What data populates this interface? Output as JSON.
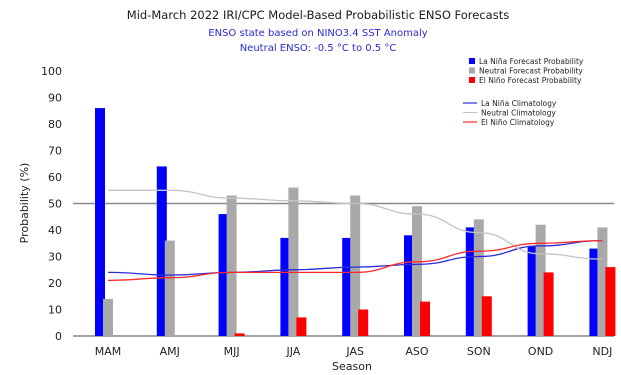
{
  "chart_data": {
    "type": "bar",
    "title": "Mid-March 2022 IRI/CPC Model-Based Probabilistic ENSO Forecasts",
    "subtitle_lines": [
      "ENSO state based on NINO3.4 SST Anomaly",
      "Neutral ENSO: -0.5 °C to 0.5 °C"
    ],
    "xlabel": "Season",
    "ylabel": "Probability (%)",
    "ylim": [
      0,
      100
    ],
    "yticks": [
      "0",
      "10",
      "20",
      "30",
      "40",
      "50",
      "60",
      "70",
      "80",
      "90",
      "100"
    ],
    "reference_line": 50,
    "grid": false,
    "legend_position": "top-right",
    "categories": [
      "MAM",
      "AMJ",
      "MJJ",
      "JJA",
      "JAS",
      "ASO",
      "SON",
      "OND",
      "NDJ"
    ],
    "series": [
      {
        "name": "La Niña Forecast Probability",
        "color": "#0000ff",
        "values": [
          86,
          64,
          46,
          37,
          37,
          38,
          41,
          34,
          33
        ]
      },
      {
        "name": "Neutral Forecast Probability",
        "color": "#a9a9a9",
        "values": [
          14,
          36,
          53,
          56,
          53,
          49,
          44,
          42,
          41
        ]
      },
      {
        "name": "El Niño Forecast Probability",
        "color": "#ff0000",
        "values": [
          0,
          0,
          1,
          7,
          10,
          13,
          15,
          24,
          26
        ]
      }
    ],
    "lines": [
      {
        "name": "La Niña Climatology",
        "color": "#2b2bd9",
        "values": [
          24,
          23,
          24,
          25,
          26,
          27,
          30,
          34,
          36
        ]
      },
      {
        "name": "Neutral Climatology",
        "color": "#c4c4c4",
        "values": [
          55,
          55,
          52,
          51,
          50,
          46,
          39,
          31,
          29
        ]
      },
      {
        "name": "El Niño Climatology",
        "color": "#ff2a2a",
        "values": [
          21,
          22,
          24,
          24,
          24,
          28,
          32,
          35,
          36
        ]
      }
    ]
  }
}
